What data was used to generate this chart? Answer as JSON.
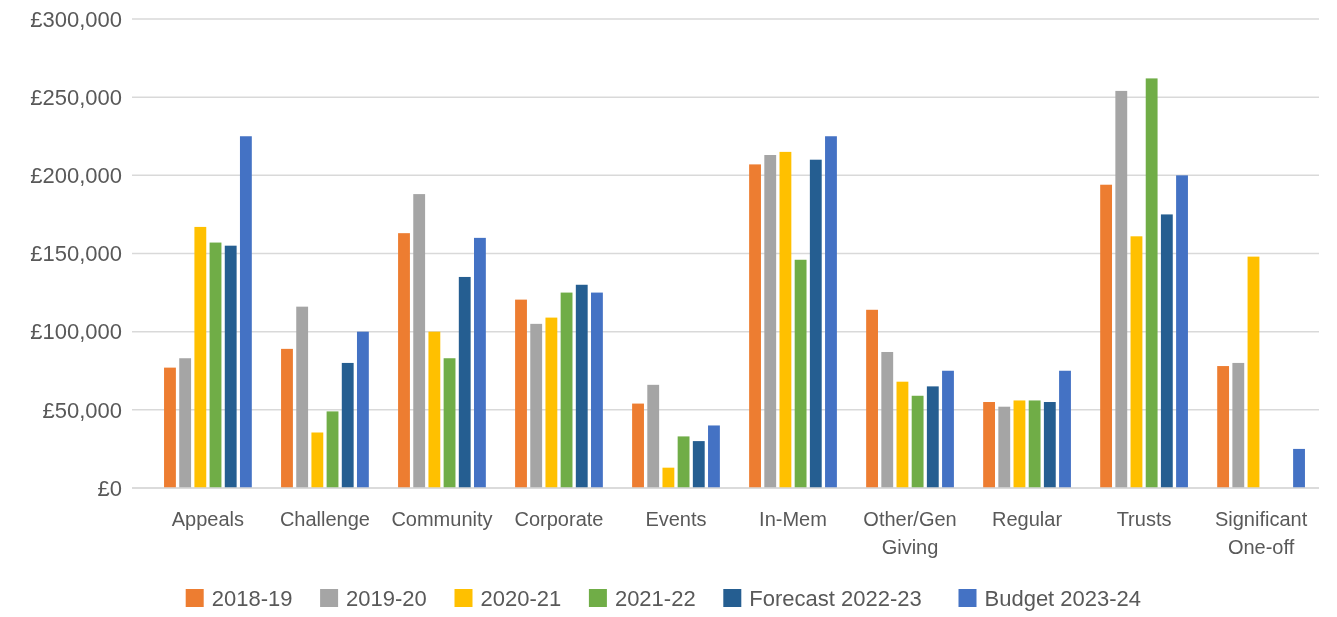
{
  "chart_data": {
    "type": "bar",
    "categories": [
      "Appeals",
      "Challenge",
      "Community",
      "Corporate",
      "Events",
      "In-Mem",
      "Other/Gen Giving",
      "Regular",
      "Trusts",
      "Significant One-off"
    ],
    "series": [
      {
        "name": "2018-19",
        "color": "#ed7d31",
        "values": [
          77000,
          89000,
          163000,
          120500,
          54000,
          207000,
          114000,
          55000,
          194000,
          78000
        ]
      },
      {
        "name": "2019-20",
        "color": "#a5a5a5",
        "values": [
          83000,
          116000,
          188000,
          105000,
          66000,
          213000,
          87000,
          52000,
          254000,
          80000
        ]
      },
      {
        "name": "2020-21",
        "color": "#ffc000",
        "values": [
          167000,
          35500,
          100000,
          109000,
          13000,
          215000,
          68000,
          56000,
          161000,
          148000
        ]
      },
      {
        "name": "2021-22",
        "color": "#70ad47",
        "values": [
          157000,
          49000,
          83000,
          125000,
          33000,
          146000,
          59000,
          56000,
          262000,
          null
        ]
      },
      {
        "name": "Forecast 2022-23",
        "color": "#255e91",
        "values": [
          155000,
          80000,
          135000,
          130000,
          30000,
          210000,
          65000,
          55000,
          175000,
          null
        ]
      },
      {
        "name": "Budget 2023-24",
        "color": "#4472c4",
        "values": [
          225000,
          100000,
          160000,
          125000,
          40000,
          225000,
          75000,
          75000,
          200000,
          25000
        ]
      }
    ],
    "ylim": [
      0,
      300000
    ],
    "yticks": [
      {
        "value": 0,
        "label": "£0"
      },
      {
        "value": 50000,
        "label": "£50,000"
      },
      {
        "value": 100000,
        "label": "£100,000"
      },
      {
        "value": 150000,
        "label": "£150,000"
      },
      {
        "value": 200000,
        "label": "£200,000"
      },
      {
        "value": 250000,
        "label": "£250,000"
      },
      {
        "value": 300000,
        "label": "£300,000"
      }
    ],
    "grid": "y",
    "legend": "bottom"
  }
}
